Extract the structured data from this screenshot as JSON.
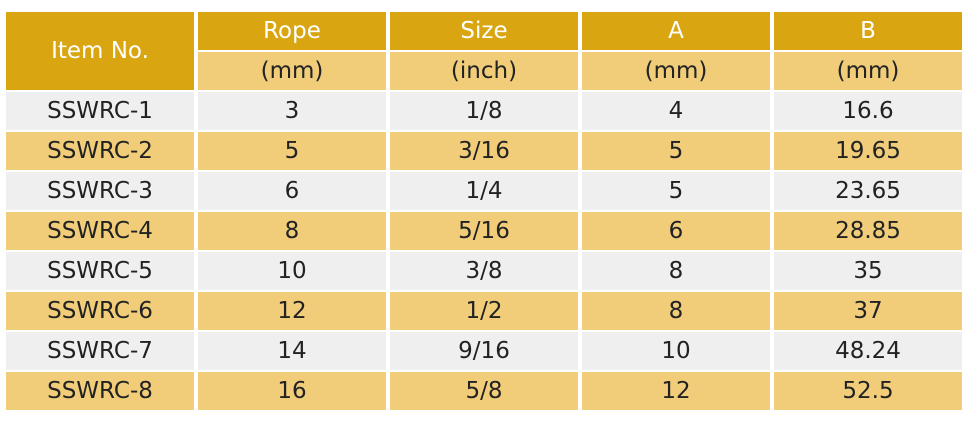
{
  "table": {
    "header": {
      "item_no": "Item No.",
      "columns": [
        {
          "name": "Rope",
          "unit": "(mm)"
        },
        {
          "name": "Size",
          "unit": "(inch)"
        },
        {
          "name": "A",
          "unit": "(mm)"
        },
        {
          "name": "B",
          "unit": "(mm)"
        }
      ]
    },
    "rows": [
      [
        "SSWRC-1",
        "3",
        "1/8",
        "4",
        "16.6"
      ],
      [
        "SSWRC-2",
        "5",
        "3/16",
        "5",
        "19.65"
      ],
      [
        "SSWRC-3",
        "6",
        "1/4",
        "5",
        "23.65"
      ],
      [
        "SSWRC-4",
        "8",
        "5/16",
        "6",
        "28.85"
      ],
      [
        "SSWRC-5",
        "10",
        "3/8",
        "8",
        "35"
      ],
      [
        "SSWRC-6",
        "12",
        "1/2",
        "8",
        "37"
      ],
      [
        "SSWRC-7",
        "14",
        "9/16",
        "10",
        "48.24"
      ],
      [
        "SSWRC-8",
        "16",
        "5/8",
        "12",
        "52.5"
      ]
    ]
  }
}
